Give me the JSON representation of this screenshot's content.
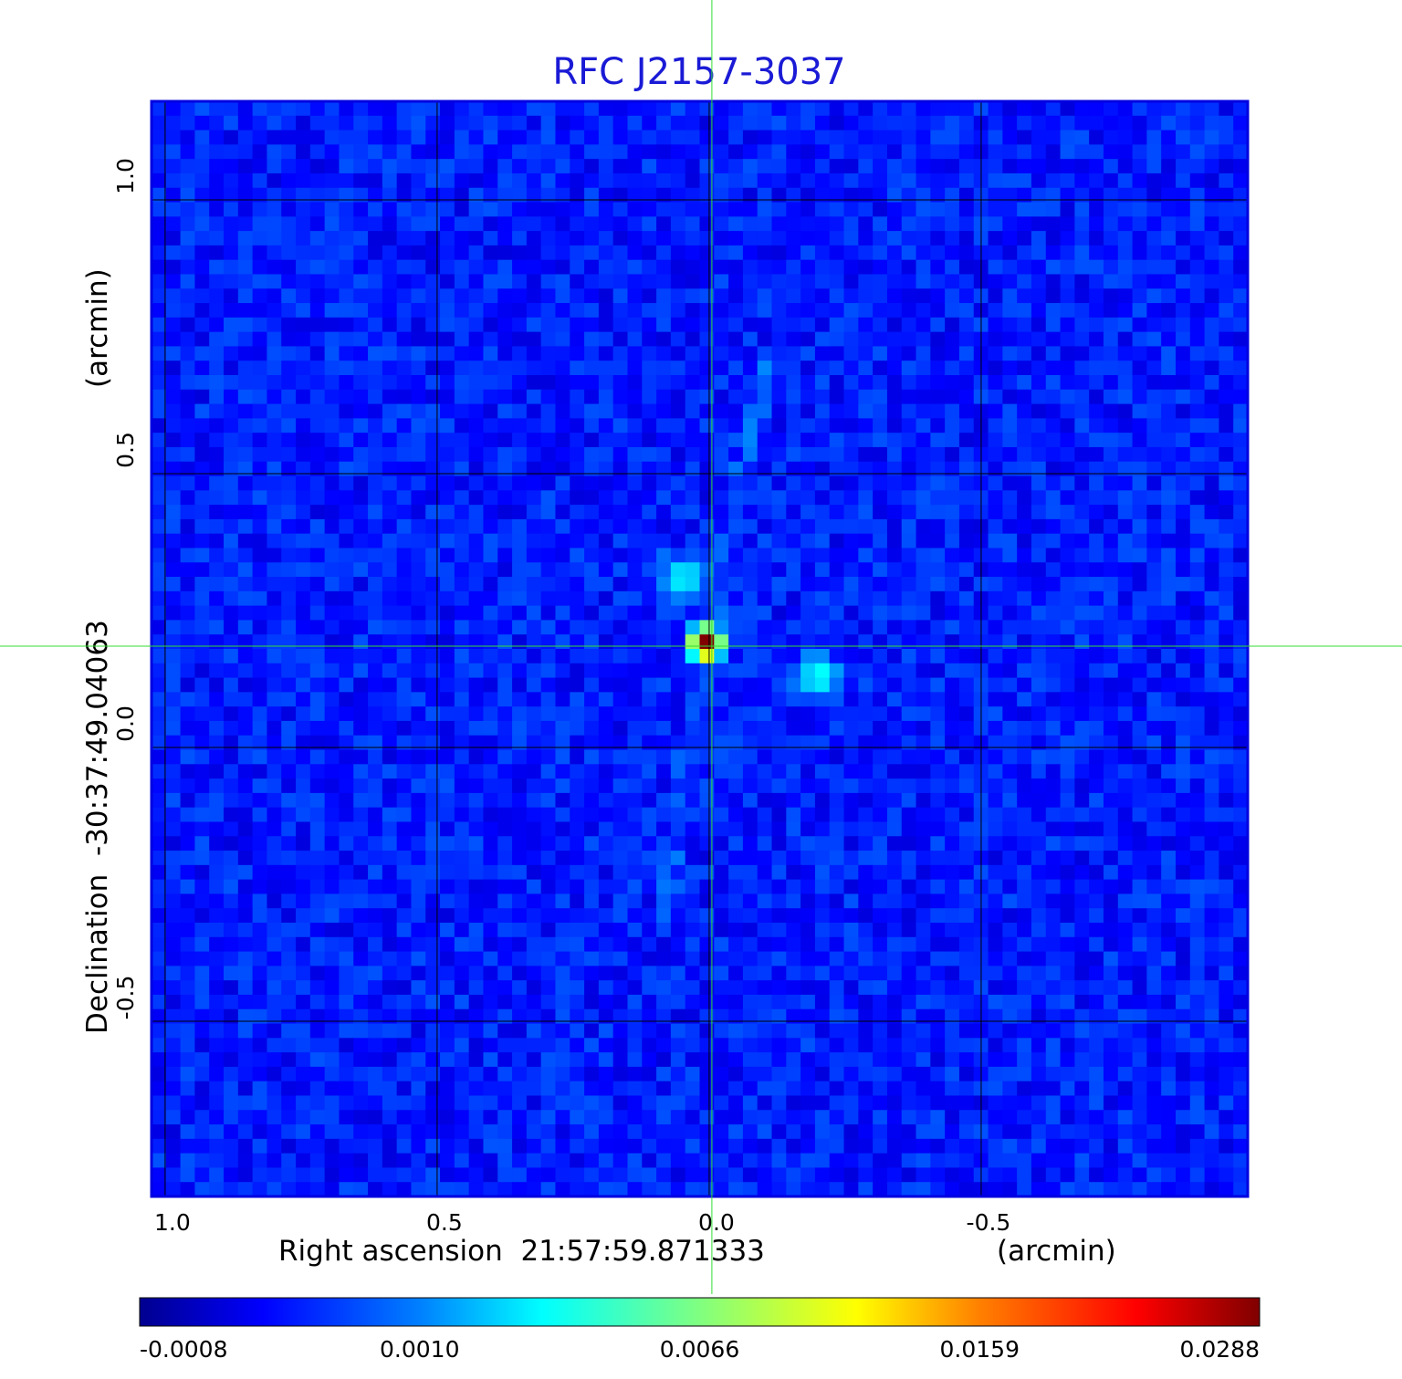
{
  "chart_data": {
    "type": "heatmap",
    "title": "RFC J2157-3037",
    "xlabel": "Right ascension  21:57:59.871333",
    "xlabel_unit": "(arcmin)",
    "ylabel": "Declination  -30:37:49.04063",
    "ylabel_unit": "(arcmin)",
    "x_ticks": [
      {
        "value": 1.0,
        "label": "1.0"
      },
      {
        "value": 0.5,
        "label": "0.5"
      },
      {
        "value": 0.0,
        "label": "0.0"
      },
      {
        "value": -0.5,
        "label": "-0.5"
      }
    ],
    "y_ticks": [
      {
        "value": 1.0,
        "label": "1.0"
      },
      {
        "value": 0.5,
        "label": "0.5"
      },
      {
        "value": 0.0,
        "label": "0.0"
      },
      {
        "value": -0.5,
        "label": "-0.5"
      }
    ],
    "xlim": [
      1.025,
      -0.99
    ],
    "ylim": [
      -0.82,
      1.18
    ],
    "x_reversed": true,
    "grid": true,
    "crosshair": {
      "x": -0.005,
      "y": 0.185
    },
    "colormap": "jet",
    "colorbar": {
      "position": "bottom",
      "ticks": [
        "-0.0008",
        "0.0010",
        "0.0066",
        "0.0159",
        "0.0288"
      ]
    },
    "features": [
      {
        "name": "core",
        "x": 0.005,
        "y": 0.19,
        "peak": 0.0288
      },
      {
        "name": "knot-north",
        "x": 0.05,
        "y": 0.31,
        "peak": 0.004
      },
      {
        "name": "knot-southwest",
        "x": -0.2,
        "y": 0.13,
        "peak": 0.0045
      }
    ],
    "background_level": 0.0002
  },
  "colors": {
    "title": "#1a1ad6",
    "frame": "#0000e0",
    "grid": "#000000",
    "crosshair": "#33dd33",
    "colormap_stops": [
      "#00008f",
      "#0000ff",
      "#0080ff",
      "#00ffff",
      "#80ff80",
      "#ffff00",
      "#ff8000",
      "#ff0000",
      "#800000"
    ]
  }
}
